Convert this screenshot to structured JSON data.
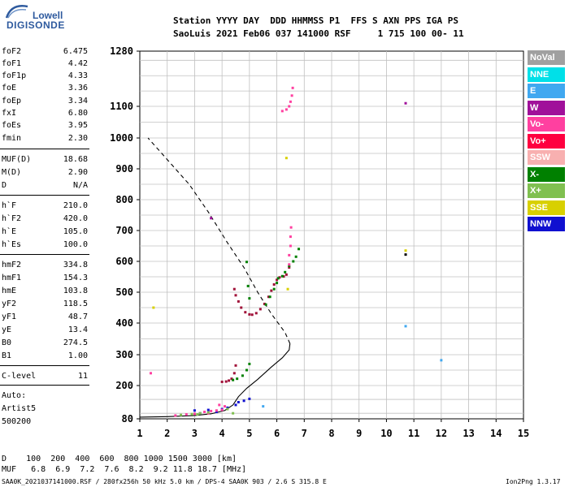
{
  "logo": {
    "line1": "Lowell",
    "line2": "DIGISONDE"
  },
  "header": {
    "row1": "Station YYYY DAY  DDD HHMMSS P1  FFS S AXN PPS IGA PS",
    "row2": "SaoLuis 2021 Feb06 037 141000 RSF     1 715 100 00- 11"
  },
  "params": [
    {
      "k": "foF2",
      "v": "6.475"
    },
    {
      "k": "foF1",
      "v": "4.42"
    },
    {
      "k": "foF1p",
      "v": "4.33"
    },
    {
      "k": "foE",
      "v": "3.36"
    },
    {
      "k": "foEp",
      "v": "3.34"
    },
    {
      "k": "fxI",
      "v": "6.80"
    },
    {
      "k": "foEs",
      "v": "3.95"
    },
    {
      "k": "fmin",
      "v": "2.30"
    },
    {
      "k": "MUF(D)",
      "v": "18.68"
    },
    {
      "k": "M(D)",
      "v": "2.90"
    },
    {
      "k": "D",
      "v": "N/A"
    },
    {
      "k": "h`F",
      "v": "210.0"
    },
    {
      "k": "h`F2",
      "v": "420.0"
    },
    {
      "k": "h`E",
      "v": "105.0"
    },
    {
      "k": "h`Es",
      "v": "100.0"
    },
    {
      "k": "hmF2",
      "v": "334.8"
    },
    {
      "k": "hmF1",
      "v": "154.3"
    },
    {
      "k": "hmE",
      "v": "103.8"
    },
    {
      "k": "yF2",
      "v": "118.5"
    },
    {
      "k": "yF1",
      "v": "48.7"
    },
    {
      "k": "yE",
      "v": "13.4"
    },
    {
      "k": "B0",
      "v": "274.5"
    },
    {
      "k": "B1",
      "v": "1.00"
    },
    {
      "k": "C-level",
      "v": "11"
    }
  ],
  "auto": {
    "line1": "Auto:",
    "line2": "Artist5",
    "line3": "500200"
  },
  "legend": [
    {
      "label": "NoVal",
      "color": "#a0a0a0"
    },
    {
      "label": "NNE",
      "color": "#00e0e8"
    },
    {
      "label": "E",
      "color": "#40a8f0"
    },
    {
      "label": "W",
      "color": "#a0109a"
    },
    {
      "label": "Vo-",
      "color": "#ff40a0"
    },
    {
      "label": "Vo+",
      "color": "#ff0040"
    },
    {
      "label": "SSW",
      "color": "#f8b0b0"
    },
    {
      "label": "X-",
      "color": "#008000"
    },
    {
      "label": "X+",
      "color": "#80c050"
    },
    {
      "label": "SSE",
      "color": "#d8d000"
    },
    {
      "label": "NNW",
      "color": "#1010d0"
    }
  ],
  "footer": {
    "row1": "D    100  200  400  600  800 1000 1500 3000 [km]",
    "row2": "MUF   6.8  6.9  7.2  7.6  8.2  9.2 11.8 18.7 [MHz]",
    "row3": "SAA0K_2021037141000.RSF / 280fx256h 50 kHz 5.0 km / DPS-4 SAA0K 903 / 2.6 S 315.8 E",
    "version": "Ion2Png 1.3.17"
  },
  "chart_data": {
    "type": "scatter",
    "title": "",
    "xlabel": "",
    "ylabel": "",
    "xlim": [
      1,
      15
    ],
    "ylim": [
      80,
      1280
    ],
    "xticks": [
      "1",
      "2",
      "3",
      "4",
      "5",
      "6",
      "7",
      "8",
      "9",
      "10",
      "11",
      "12",
      "13",
      "14",
      "15"
    ],
    "yticks": [
      "80",
      "200",
      "300",
      "400",
      "500",
      "600",
      "700",
      "800",
      "900",
      "1000",
      "1100",
      "1280"
    ],
    "grid": true,
    "profile_line": [
      [
        1,
        86
      ],
      [
        2,
        88
      ],
      [
        3,
        92
      ],
      [
        3.6,
        98
      ],
      [
        4.1,
        110
      ],
      [
        4.4,
        130
      ],
      [
        4.6,
        160
      ],
      [
        4.9,
        190
      ],
      [
        5.3,
        220
      ],
      [
        5.8,
        260
      ],
      [
        6.2,
        290
      ],
      [
        6.45,
        315
      ],
      [
        6.48,
        335
      ]
    ],
    "profile_dashed": [
      [
        6.48,
        335
      ],
      [
        6.3,
        370
      ],
      [
        5.8,
        430
      ],
      [
        5.3,
        500
      ],
      [
        4.8,
        580
      ],
      [
        4.2,
        660
      ],
      [
        3.5,
        760
      ],
      [
        2.8,
        850
      ],
      [
        2.0,
        930
      ],
      [
        1.3,
        1000
      ]
    ],
    "traces": [
      {
        "name": "Vo+",
        "color": "#a01038",
        "points": [
          [
            4.45,
            510
          ],
          [
            4.5,
            490
          ],
          [
            4.6,
            470
          ],
          [
            4.7,
            450
          ],
          [
            4.85,
            435
          ],
          [
            5.0,
            428
          ],
          [
            5.1,
            427
          ],
          [
            5.25,
            432
          ],
          [
            5.4,
            445
          ],
          [
            5.55,
            462
          ],
          [
            5.7,
            485
          ],
          [
            5.8,
            505
          ],
          [
            5.9,
            525
          ],
          [
            6.0,
            540
          ],
          [
            6.1,
            548
          ],
          [
            6.25,
            551
          ],
          [
            6.35,
            557
          ],
          [
            6.45,
            580
          ]
        ]
      },
      {
        "name": "X-",
        "color": "#008000",
        "points": [
          [
            5.6,
            460
          ],
          [
            5.75,
            485
          ],
          [
            5.9,
            510
          ],
          [
            6.0,
            530
          ],
          [
            6.05,
            545
          ],
          [
            6.2,
            552
          ],
          [
            6.3,
            565
          ],
          [
            6.45,
            585
          ],
          [
            6.6,
            600
          ],
          [
            6.7,
            615
          ],
          [
            6.8,
            640
          ]
        ]
      },
      {
        "name": "Vo-",
        "color": "#ff40a0",
        "points": [
          [
            6.45,
            590
          ],
          [
            6.45,
            620
          ],
          [
            6.5,
            650
          ],
          [
            6.5,
            680
          ],
          [
            6.52,
            710
          ]
        ]
      },
      {
        "name": "Vo-high",
        "color": "#ff40a0",
        "points": [
          [
            6.2,
            1085
          ],
          [
            6.35,
            1090
          ],
          [
            6.45,
            1100
          ],
          [
            6.5,
            1115
          ],
          [
            6.55,
            1135
          ],
          [
            6.58,
            1160
          ]
        ]
      },
      {
        "name": "F1",
        "color": "#a01038",
        "points": [
          [
            4.0,
            212
          ],
          [
            4.15,
            213
          ],
          [
            4.25,
            216
          ],
          [
            4.35,
            222
          ],
          [
            4.45,
            240
          ],
          [
            4.5,
            265
          ]
        ]
      },
      {
        "name": "F1x",
        "color": "#008000",
        "points": [
          [
            4.4,
            218
          ],
          [
            4.55,
            222
          ],
          [
            4.75,
            232
          ],
          [
            4.9,
            250
          ],
          [
            5.0,
            270
          ]
        ]
      },
      {
        "name": "Es",
        "color": "#1010d0",
        "points": [
          [
            3.0,
            110
          ],
          [
            3.5,
            112
          ],
          [
            4.0,
            115
          ],
          [
            4.5,
            130
          ],
          [
            4.8,
            145
          ],
          [
            5.0,
            152
          ],
          [
            3.2,
            100
          ],
          [
            3.8,
            105
          ],
          [
            4.2,
            120
          ],
          [
            4.6,
            140
          ]
        ]
      },
      {
        "name": "Elayer",
        "color": "#ff40a0",
        "points": [
          [
            2.3,
            92
          ],
          [
            2.7,
            96
          ],
          [
            3.0,
            98
          ],
          [
            3.36,
            105
          ],
          [
            3.6,
            108
          ],
          [
            3.8,
            110
          ],
          [
            4.0,
            112
          ],
          [
            3.9,
            130
          ],
          [
            4.1,
            125
          ],
          [
            3.5,
            100
          ]
        ]
      },
      {
        "name": "Egreen",
        "color": "#80c050",
        "points": [
          [
            2.5,
            94
          ],
          [
            2.9,
            97
          ],
          [
            3.2,
            100
          ],
          [
            3.5,
            103
          ],
          [
            4.2,
            115
          ],
          [
            4.4,
            100
          ],
          [
            3.1,
            96
          ]
        ]
      },
      {
        "name": "scatter",
        "color": "#a0109a",
        "points": [
          [
            10.7,
            1110
          ],
          [
            3.6,
            740
          ]
        ]
      },
      {
        "name": "scatter2",
        "color": "#40a8f0",
        "points": [
          [
            10.7,
            390
          ],
          [
            12.0,
            282
          ],
          [
            5.5,
            125
          ]
        ]
      },
      {
        "name": "scatter3",
        "color": "#d8d000",
        "points": [
          [
            6.35,
            935
          ],
          [
            1.5,
            450
          ],
          [
            6.4,
            510
          ],
          [
            10.7,
            635
          ]
        ]
      },
      {
        "name": "scatter4",
        "color": "#000000",
        "points": [
          [
            10.7,
            622
          ]
        ]
      },
      {
        "name": "scatter5",
        "color": "#ff40a0",
        "points": [
          [
            1.4,
            240
          ]
        ]
      },
      {
        "name": "scatter6",
        "color": "#008000",
        "points": [
          [
            4.9,
            598
          ],
          [
            5.0,
            480
          ],
          [
            4.95,
            520
          ]
        ]
      }
    ]
  }
}
